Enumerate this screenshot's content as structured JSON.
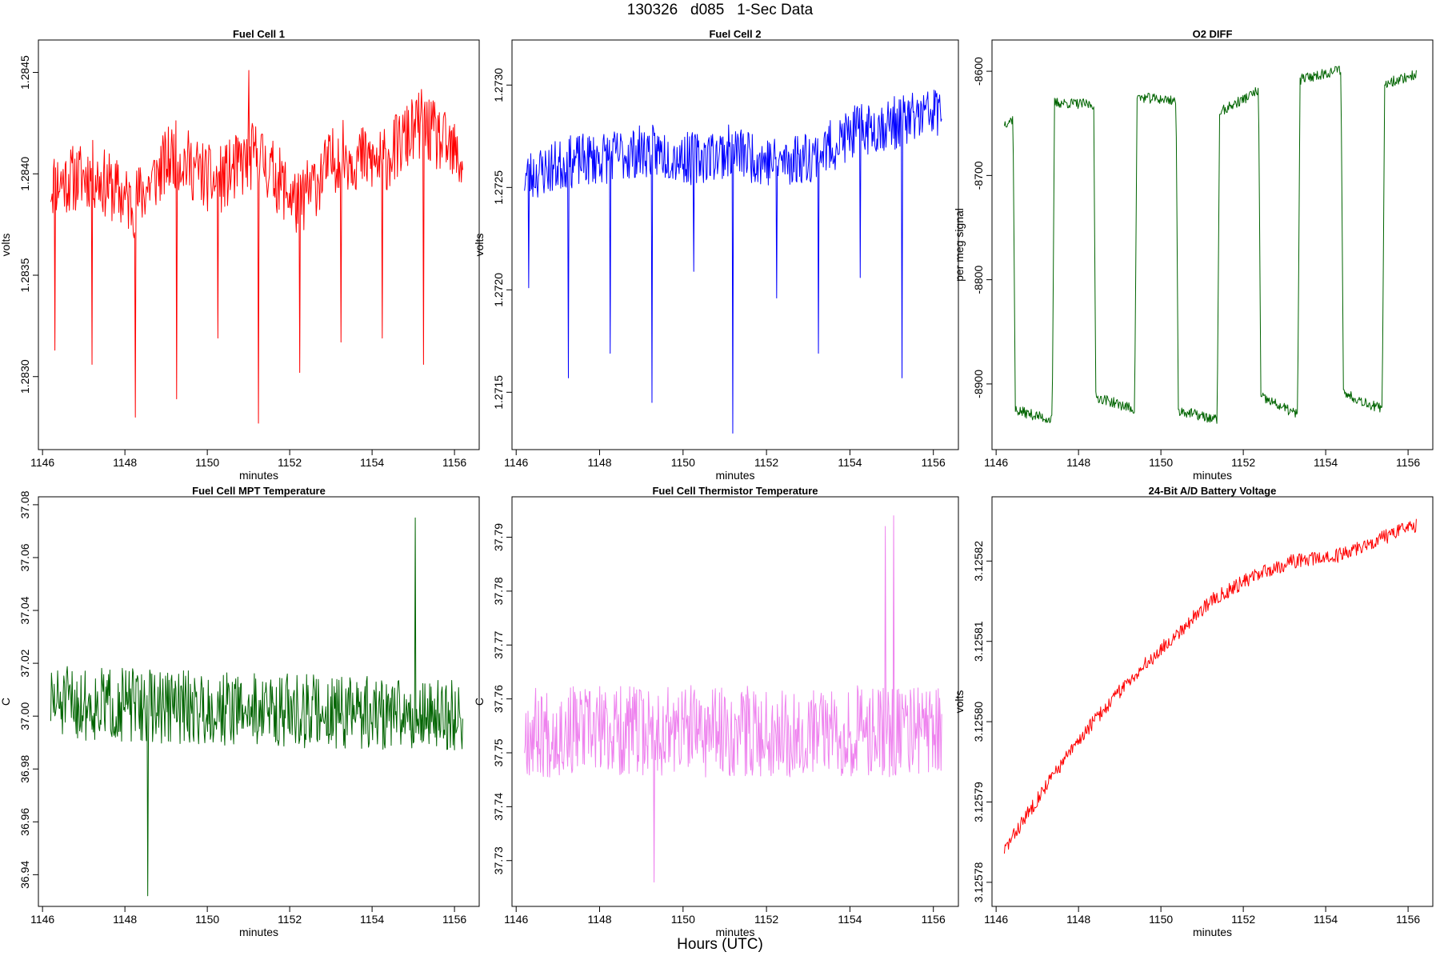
{
  "figure": {
    "suptitle": "130326   d085   1-Sec Data",
    "footer": "Hours (UTC)"
  },
  "chart_data": [
    {
      "id": "p1",
      "type": "line",
      "title": "Fuel Cell 1",
      "xlabel": "minutes",
      "ylabel": "volts",
      "color": "#ff0000",
      "xlim": [
        1145.9,
        1156.6
      ],
      "ylim": [
        1.28264,
        1.28466
      ],
      "xticks": [
        "1146",
        "1148",
        "1150",
        "1152",
        "1154",
        "1156"
      ],
      "yticks": [
        "1.2830",
        "1.2835",
        "1.2840",
        "1.2845"
      ],
      "series": {
        "x_start": 1146.2,
        "x_end": 1156.2,
        "n": 600,
        "baseline_anchors": [
          1.28395,
          1.284,
          1.28385,
          1.2841,
          1.28395,
          1.2841,
          1.28385,
          1.2841,
          1.28405,
          1.28425,
          1.28405
        ],
        "noise": 0.00017,
        "spikes": [
          [
            1146.3,
            1.28313
          ],
          [
            1147.2,
            1.28306
          ],
          [
            1148.25,
            1.2828
          ],
          [
            1149.25,
            1.28289
          ],
          [
            1150.25,
            1.28319
          ],
          [
            1151.0,
            1.28451
          ],
          [
            1151.25,
            1.28277
          ],
          [
            1152.25,
            1.28302
          ],
          [
            1153.25,
            1.28317
          ],
          [
            1154.25,
            1.28319
          ],
          [
            1155.25,
            1.28306
          ]
        ],
        "seed": 11
      }
    },
    {
      "id": "p2",
      "type": "line",
      "title": "Fuel Cell 2",
      "xlabel": "minutes",
      "ylabel": "volts",
      "color": "#0000ff",
      "xlim": [
        1145.9,
        1156.6
      ],
      "ylim": [
        1.27122,
        1.27322
      ],
      "xticks": [
        "1146",
        "1148",
        "1150",
        "1152",
        "1154",
        "1156"
      ],
      "yticks": [
        "1.2715",
        "1.2720",
        "1.2725",
        "1.2730"
      ],
      "series": {
        "x_start": 1146.2,
        "x_end": 1156.2,
        "n": 600,
        "baseline_anchors": [
          1.27255,
          1.27262,
          1.27265,
          1.27268,
          1.27264,
          1.27268,
          1.27262,
          1.27266,
          1.27278,
          1.27282,
          1.27288
        ],
        "noise": 0.00013,
        "spikes": [
          [
            1146.3,
            1.27201
          ],
          [
            1147.25,
            1.27157
          ],
          [
            1148.25,
            1.27169
          ],
          [
            1149.25,
            1.27145
          ],
          [
            1150.25,
            1.27209
          ],
          [
            1151.2,
            1.2713
          ],
          [
            1152.25,
            1.27196
          ],
          [
            1153.25,
            1.27169
          ],
          [
            1154.25,
            1.27206
          ],
          [
            1155.25,
            1.27157
          ]
        ],
        "seed": 23
      }
    },
    {
      "id": "p3",
      "type": "line",
      "title": "O2 DIFF",
      "xlabel": "minutes",
      "ylabel": "per meg signal",
      "color": "#006400",
      "xlim": [
        1145.9,
        1156.6
      ],
      "ylim": [
        -8963,
        -8570
      ],
      "xticks": [
        "1146",
        "1148",
        "1150",
        "1152",
        "1154",
        "1156"
      ],
      "yticks": [
        "-8900",
        "-8800",
        "-8700",
        "-8600"
      ],
      "square": {
        "x_start": 1146.2,
        "x_end": 1156.2,
        "n": 600,
        "levels": [
          [
            1146.2,
            1146.45,
            -8650,
            -8645
          ],
          [
            1146.45,
            1147.4,
            -8925,
            -8935
          ],
          [
            1147.4,
            1148.4,
            -8630,
            -8632
          ],
          [
            1148.4,
            1149.4,
            -8912,
            -8925
          ],
          [
            1149.4,
            1150.4,
            -8625,
            -8628
          ],
          [
            1150.4,
            1151.4,
            -8925,
            -8935
          ],
          [
            1151.4,
            1152.4,
            -8640,
            -8618
          ],
          [
            1152.4,
            1153.35,
            -8912,
            -8930
          ],
          [
            1153.35,
            1154.4,
            -8608,
            -8598
          ],
          [
            1154.4,
            1155.4,
            -8908,
            -8925
          ],
          [
            1155.4,
            1156.2,
            -8612,
            -8603
          ]
        ],
        "noise": 5,
        "seed": 37
      }
    },
    {
      "id": "p4",
      "type": "line",
      "title": "Fuel Cell MPT Temperature",
      "xlabel": "minutes",
      "ylabel": "C",
      "color": "#006400",
      "xlim": [
        1145.9,
        1156.6
      ],
      "ylim": [
        36.928,
        37.083
      ],
      "xticks": [
        "1146",
        "1148",
        "1150",
        "1152",
        "1154",
        "1156"
      ],
      "yticks": [
        "36.94",
        "36.96",
        "36.98",
        "37.00",
        "37.02",
        "37.04",
        "37.06",
        "37.08"
      ],
      "series": {
        "x_start": 1146.2,
        "x_end": 1156.2,
        "n": 600,
        "baseline_anchors": [
          37.005,
          37.0
        ],
        "noise": 0.014,
        "spikes": [
          [
            1148.55,
            36.932
          ],
          [
            1155.05,
            37.075
          ]
        ],
        "seed": 51
      }
    },
    {
      "id": "p5",
      "type": "line",
      "title": "Fuel Cell Thermistor Temperature",
      "xlabel": "minutes",
      "ylabel": "C",
      "color": "#ee82ee",
      "xlim": [
        1145.9,
        1156.6
      ],
      "ylim": [
        37.7215,
        37.7975
      ],
      "xticks": [
        "1146",
        "1148",
        "1150",
        "1152",
        "1154",
        "1156"
      ],
      "yticks": [
        "37.73",
        "37.74",
        "37.75",
        "37.76",
        "37.77",
        "37.78",
        "37.79"
      ],
      "series": {
        "x_start": 1146.2,
        "x_end": 1156.2,
        "n": 600,
        "baseline_anchors": [
          37.754,
          37.754
        ],
        "noise": 0.0085,
        "spikes": [
          [
            1149.3,
            37.726
          ],
          [
            1155.05,
            37.794
          ],
          [
            1154.85,
            37.792
          ]
        ],
        "seed": 67
      }
    },
    {
      "id": "p6",
      "type": "line",
      "title": "24-Bit A/D Battery Voltage",
      "xlabel": "minutes",
      "ylabel": "volts",
      "color": "#ff0000",
      "xlim": [
        1145.9,
        1156.6
      ],
      "ylim": [
        3.125777,
        3.125828
      ],
      "xticks": [
        "1146",
        "1148",
        "1150",
        "1152",
        "1154",
        "1156"
      ],
      "yticks": [
        "3.12578",
        "3.12579",
        "3.12580",
        "3.12581",
        "3.12582"
      ],
      "series": {
        "x_start": 1146.2,
        "x_end": 1156.2,
        "n": 600,
        "baseline_anchors": [
          3.125784,
          3.125792,
          3.125799,
          3.125805,
          3.12581,
          3.125815,
          3.125818,
          3.12582,
          3.1258205,
          3.1258225,
          3.1258245
        ],
        "noise": 9e-07,
        "spikes": [],
        "seed": 83
      }
    }
  ]
}
